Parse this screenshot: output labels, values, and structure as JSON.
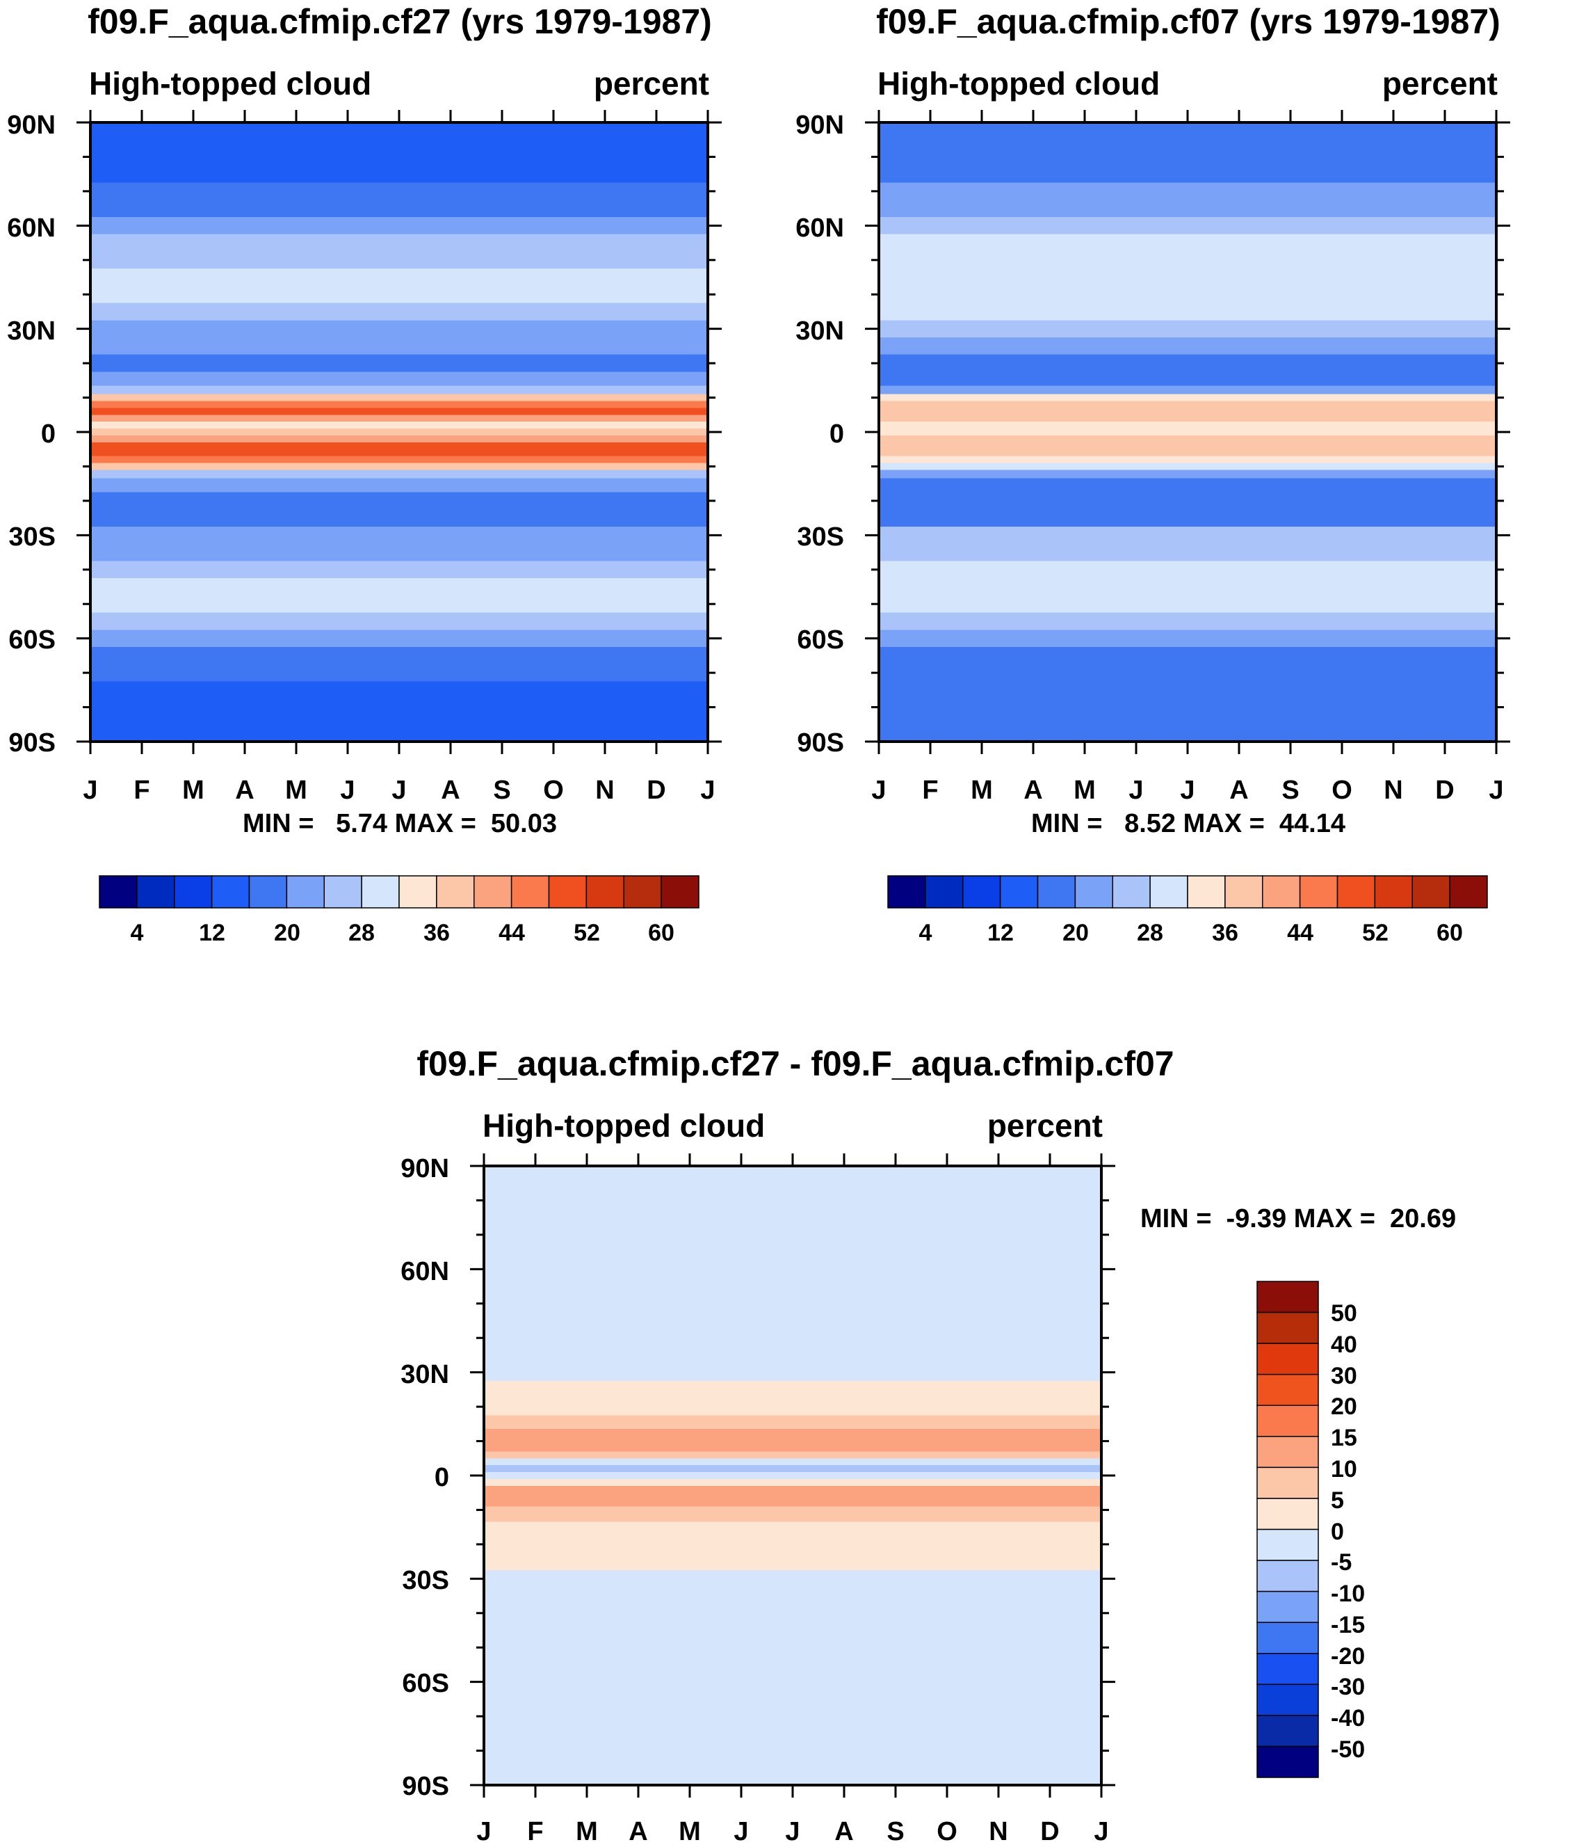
{
  "chart_data": [
    {
      "type": "heatmap",
      "title": "f09.F_aqua.cfmip.cf27 (yrs 1979-1987)",
      "left_label": "High-topped cloud",
      "right_label": "percent",
      "x_tick_labels": [
        "J",
        "F",
        "M",
        "A",
        "M",
        "J",
        "J",
        "A",
        "S",
        "O",
        "N",
        "D",
        "J"
      ],
      "y_tick_labels": [
        "90N",
        "60N",
        "30N",
        "0",
        "30S",
        "60S",
        "90S"
      ],
      "y_tick_values": [
        90,
        60,
        30,
        0,
        -30,
        -60,
        -90
      ],
      "ylim": [
        -90,
        90
      ],
      "stats": "MIN =   5.74 MAX =  50.03",
      "contour_levels": [
        4,
        8,
        12,
        16,
        20,
        24,
        28,
        32,
        36,
        40,
        44,
        48,
        52,
        56,
        60
      ],
      "colorbar_labels": [
        "4",
        "12",
        "20",
        "28",
        "36",
        "44",
        "52",
        "60"
      ],
      "zonal_profile": {
        "lat": [
          90,
          85,
          80,
          75,
          70,
          65,
          60,
          55,
          50,
          45,
          40,
          35,
          30,
          25,
          20,
          15,
          12,
          10,
          8,
          6,
          4,
          2,
          0,
          -2,
          -4,
          -6,
          -8,
          -10,
          -12,
          -15,
          -20,
          -25,
          -30,
          -35,
          -40,
          -45,
          -50,
          -55,
          -60,
          -65,
          -70,
          -75,
          -80,
          -85,
          -90
        ],
        "values": [
          14,
          14,
          14,
          14,
          18,
          18,
          22,
          24,
          26,
          30,
          30,
          26,
          22,
          20,
          16,
          20,
          26,
          38,
          46,
          50,
          40,
          34,
          38,
          40,
          48,
          50,
          46,
          38,
          26,
          20,
          16,
          18,
          20,
          22,
          26,
          30,
          28,
          24,
          20,
          18,
          16,
          14,
          14,
          14,
          14
        ]
      }
    },
    {
      "type": "heatmap",
      "title": "f09.F_aqua.cfmip.cf07 (yrs 1979-1987)",
      "left_label": "High-topped cloud",
      "right_label": "percent",
      "x_tick_labels": [
        "J",
        "F",
        "M",
        "A",
        "M",
        "J",
        "J",
        "A",
        "S",
        "O",
        "N",
        "D",
        "J"
      ],
      "y_tick_labels": [
        "90N",
        "60N",
        "30N",
        "0",
        "30S",
        "60S",
        "90S"
      ],
      "y_tick_values": [
        90,
        60,
        30,
        0,
        -30,
        -60,
        -90
      ],
      "ylim": [
        -90,
        90
      ],
      "stats": "MIN =   8.52 MAX =  44.14",
      "contour_levels": [
        4,
        8,
        12,
        16,
        20,
        24,
        28,
        32,
        36,
        40,
        44,
        48,
        52,
        56,
        60
      ],
      "colorbar_labels": [
        "4",
        "12",
        "20",
        "28",
        "36",
        "44",
        "52",
        "60"
      ],
      "zonal_profile": {
        "lat": [
          90,
          85,
          80,
          75,
          70,
          65,
          60,
          55,
          50,
          45,
          40,
          35,
          30,
          25,
          20,
          15,
          12,
          10,
          8,
          6,
          4,
          2,
          0,
          -2,
          -4,
          -6,
          -8,
          -10,
          -12,
          -15,
          -20,
          -25,
          -30,
          -35,
          -40,
          -45,
          -50,
          -55,
          -60,
          -65,
          -70,
          -75,
          -80,
          -85,
          -90
        ],
        "values": [
          18,
          18,
          18,
          18,
          22,
          22,
          26,
          28,
          30,
          30,
          30,
          28,
          24,
          20,
          18,
          16,
          20,
          34,
          38,
          38,
          36,
          34,
          34,
          36,
          38,
          36,
          34,
          28,
          20,
          16,
          16,
          18,
          24,
          26,
          30,
          30,
          28,
          26,
          22,
          18,
          18,
          18,
          18,
          18,
          18
        ]
      }
    },
    {
      "type": "heatmap",
      "title": "f09.F_aqua.cfmip.cf27 - f09.F_aqua.cfmip.cf07",
      "left_label": "High-topped cloud",
      "right_label": "percent",
      "x_tick_labels": [
        "J",
        "F",
        "M",
        "A",
        "M",
        "J",
        "J",
        "A",
        "S",
        "O",
        "N",
        "D",
        "J"
      ],
      "y_tick_labels": [
        "90N",
        "60N",
        "30N",
        "0",
        "30S",
        "60S",
        "90S"
      ],
      "y_tick_values": [
        90,
        60,
        30,
        0,
        -30,
        -60,
        -90
      ],
      "ylim": [
        -90,
        90
      ],
      "stats": "MIN =  -9.39 MAX =  20.69",
      "contour_levels": [
        -50,
        -40,
        -30,
        -20,
        -15,
        -10,
        -5,
        0,
        5,
        10,
        15,
        20,
        30,
        40,
        50
      ],
      "colorbar_labels": [
        "50",
        "40",
        "30",
        "20",
        "15",
        "10",
        "5",
        "0",
        "-5",
        "-10",
        "-15",
        "-20",
        "-30",
        "-40",
        "-50"
      ],
      "zonal_profile": {
        "lat": [
          90,
          85,
          80,
          75,
          70,
          65,
          60,
          55,
          50,
          45,
          40,
          35,
          30,
          25,
          20,
          15,
          12,
          10,
          8,
          6,
          4,
          2,
          0,
          -2,
          -4,
          -6,
          -8,
          -10,
          -12,
          -15,
          -20,
          -25,
          -30,
          -35,
          -40,
          -45,
          -50,
          -55,
          -60,
          -65,
          -70,
          -75,
          -80,
          -85,
          -90
        ],
        "values": [
          -2,
          -2,
          -2,
          -2,
          -2,
          -2,
          -2,
          -2,
          -2,
          -2,
          -2,
          -2,
          -2,
          2,
          2,
          6,
          10,
          12,
          12,
          8,
          -2,
          -6,
          -2,
          4,
          10,
          12,
          12,
          8,
          6,
          2,
          2,
          2,
          -2,
          -2,
          -2,
          -2,
          -2,
          -2,
          -2,
          -2,
          -2,
          -2,
          -2,
          -2,
          -2
        ]
      }
    }
  ],
  "colors": {
    "abs_palette": [
      "#000080",
      "#002bbf",
      "#0a3ee6",
      "#1e5ef7",
      "#3f76f2",
      "#7aa3f7",
      "#aac4fa",
      "#d5e6fc",
      "#fde7d4",
      "#fcc6a8",
      "#fba27f",
      "#fa7a4d",
      "#f04f20",
      "#d73a10",
      "#b52d0c",
      "#8b0e08"
    ],
    "diff_palette": [
      "#000080",
      "#0a2ba8",
      "#0b3fd9",
      "#1850f2",
      "#3f76f2",
      "#7aa3f7",
      "#aac4fa",
      "#d5e6fc",
      "#fde7d4",
      "#fcc6a8",
      "#fba27f",
      "#fa7a4d",
      "#f0541e",
      "#e0390d",
      "#b62d09",
      "#8b0e08"
    ]
  }
}
